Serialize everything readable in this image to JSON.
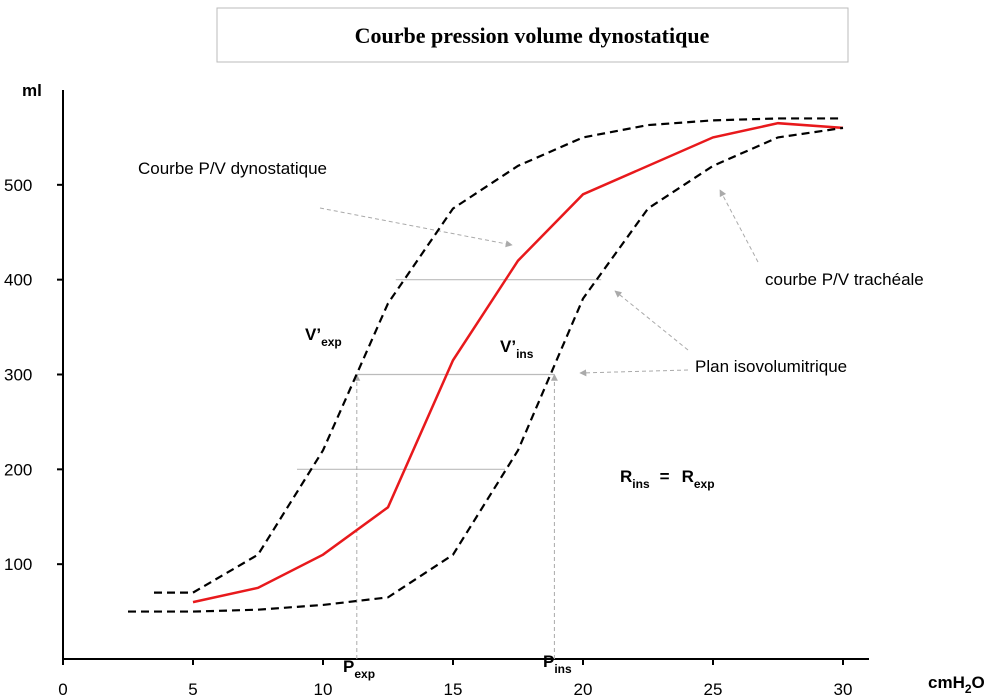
{
  "chart_data": {
    "type": "line",
    "title": "Courbe pression volume dynostatique",
    "y_label": "ml",
    "x_label": {
      "main": "cmH",
      "sub": "2",
      "after": "O"
    },
    "xlim": [
      0,
      31
    ],
    "ylim": [
      0,
      600
    ],
    "xticks": [
      0,
      5,
      10,
      15,
      20,
      25,
      30
    ],
    "yticks": [
      100,
      200,
      300,
      400,
      500
    ],
    "series": [
      {
        "color": "#e8191c",
        "dash": false,
        "x": [
          5,
          7.5,
          10,
          12.5,
          15,
          17.5,
          20,
          25,
          27.5,
          30
        ],
        "values": [
          60,
          75,
          110,
          160,
          315,
          420,
          490,
          550,
          565,
          560
        ]
      },
      {
        "color": "#000000",
        "dash": true,
        "x": [
          3.5,
          5,
          7.5,
          10,
          12.5,
          15,
          17.5,
          20,
          22.5,
          25,
          27.5,
          30
        ],
        "values": [
          70,
          70,
          110,
          220,
          375,
          475,
          520,
          550,
          563,
          568,
          570,
          570
        ]
      },
      {
        "color": "#000000",
        "dash": true,
        "x": [
          2.5,
          5,
          7.5,
          10,
          12.5,
          15,
          17.5,
          20,
          22.5,
          25,
          27.5,
          30
        ],
        "values": [
          50,
          50,
          52,
          57,
          65,
          110,
          220,
          380,
          475,
          520,
          550,
          560
        ]
      }
    ],
    "isovolume_lines": [
      {
        "y": 400,
        "x": [
          12.8,
          20.7
        ]
      },
      {
        "y": 300,
        "x": [
          11.3,
          18.9
        ]
      },
      {
        "y": 200,
        "x": [
          9,
          17
        ]
      }
    ],
    "pressure_markers": [
      {
        "x": 11.3,
        "y": 300
      },
      {
        "x": 18.9,
        "y": 300
      }
    ],
    "annotations": {
      "dyno": "Courbe P/V dynostatique",
      "trach": "courbe P/V trachéale",
      "plan": "Plan isovolumitrique",
      "vexp": {
        "main": "V’",
        "sub": "exp"
      },
      "vins": {
        "main": "V’",
        "sub": "ins"
      },
      "pexp": {
        "main": "P",
        "sub": "exp"
      },
      "pins": {
        "main": "P",
        "sub": "ins"
      },
      "r": {
        "left": "R",
        "left_sub": "ins",
        "eq": "=",
        "right": "R",
        "right_sub": "exp"
      }
    }
  }
}
